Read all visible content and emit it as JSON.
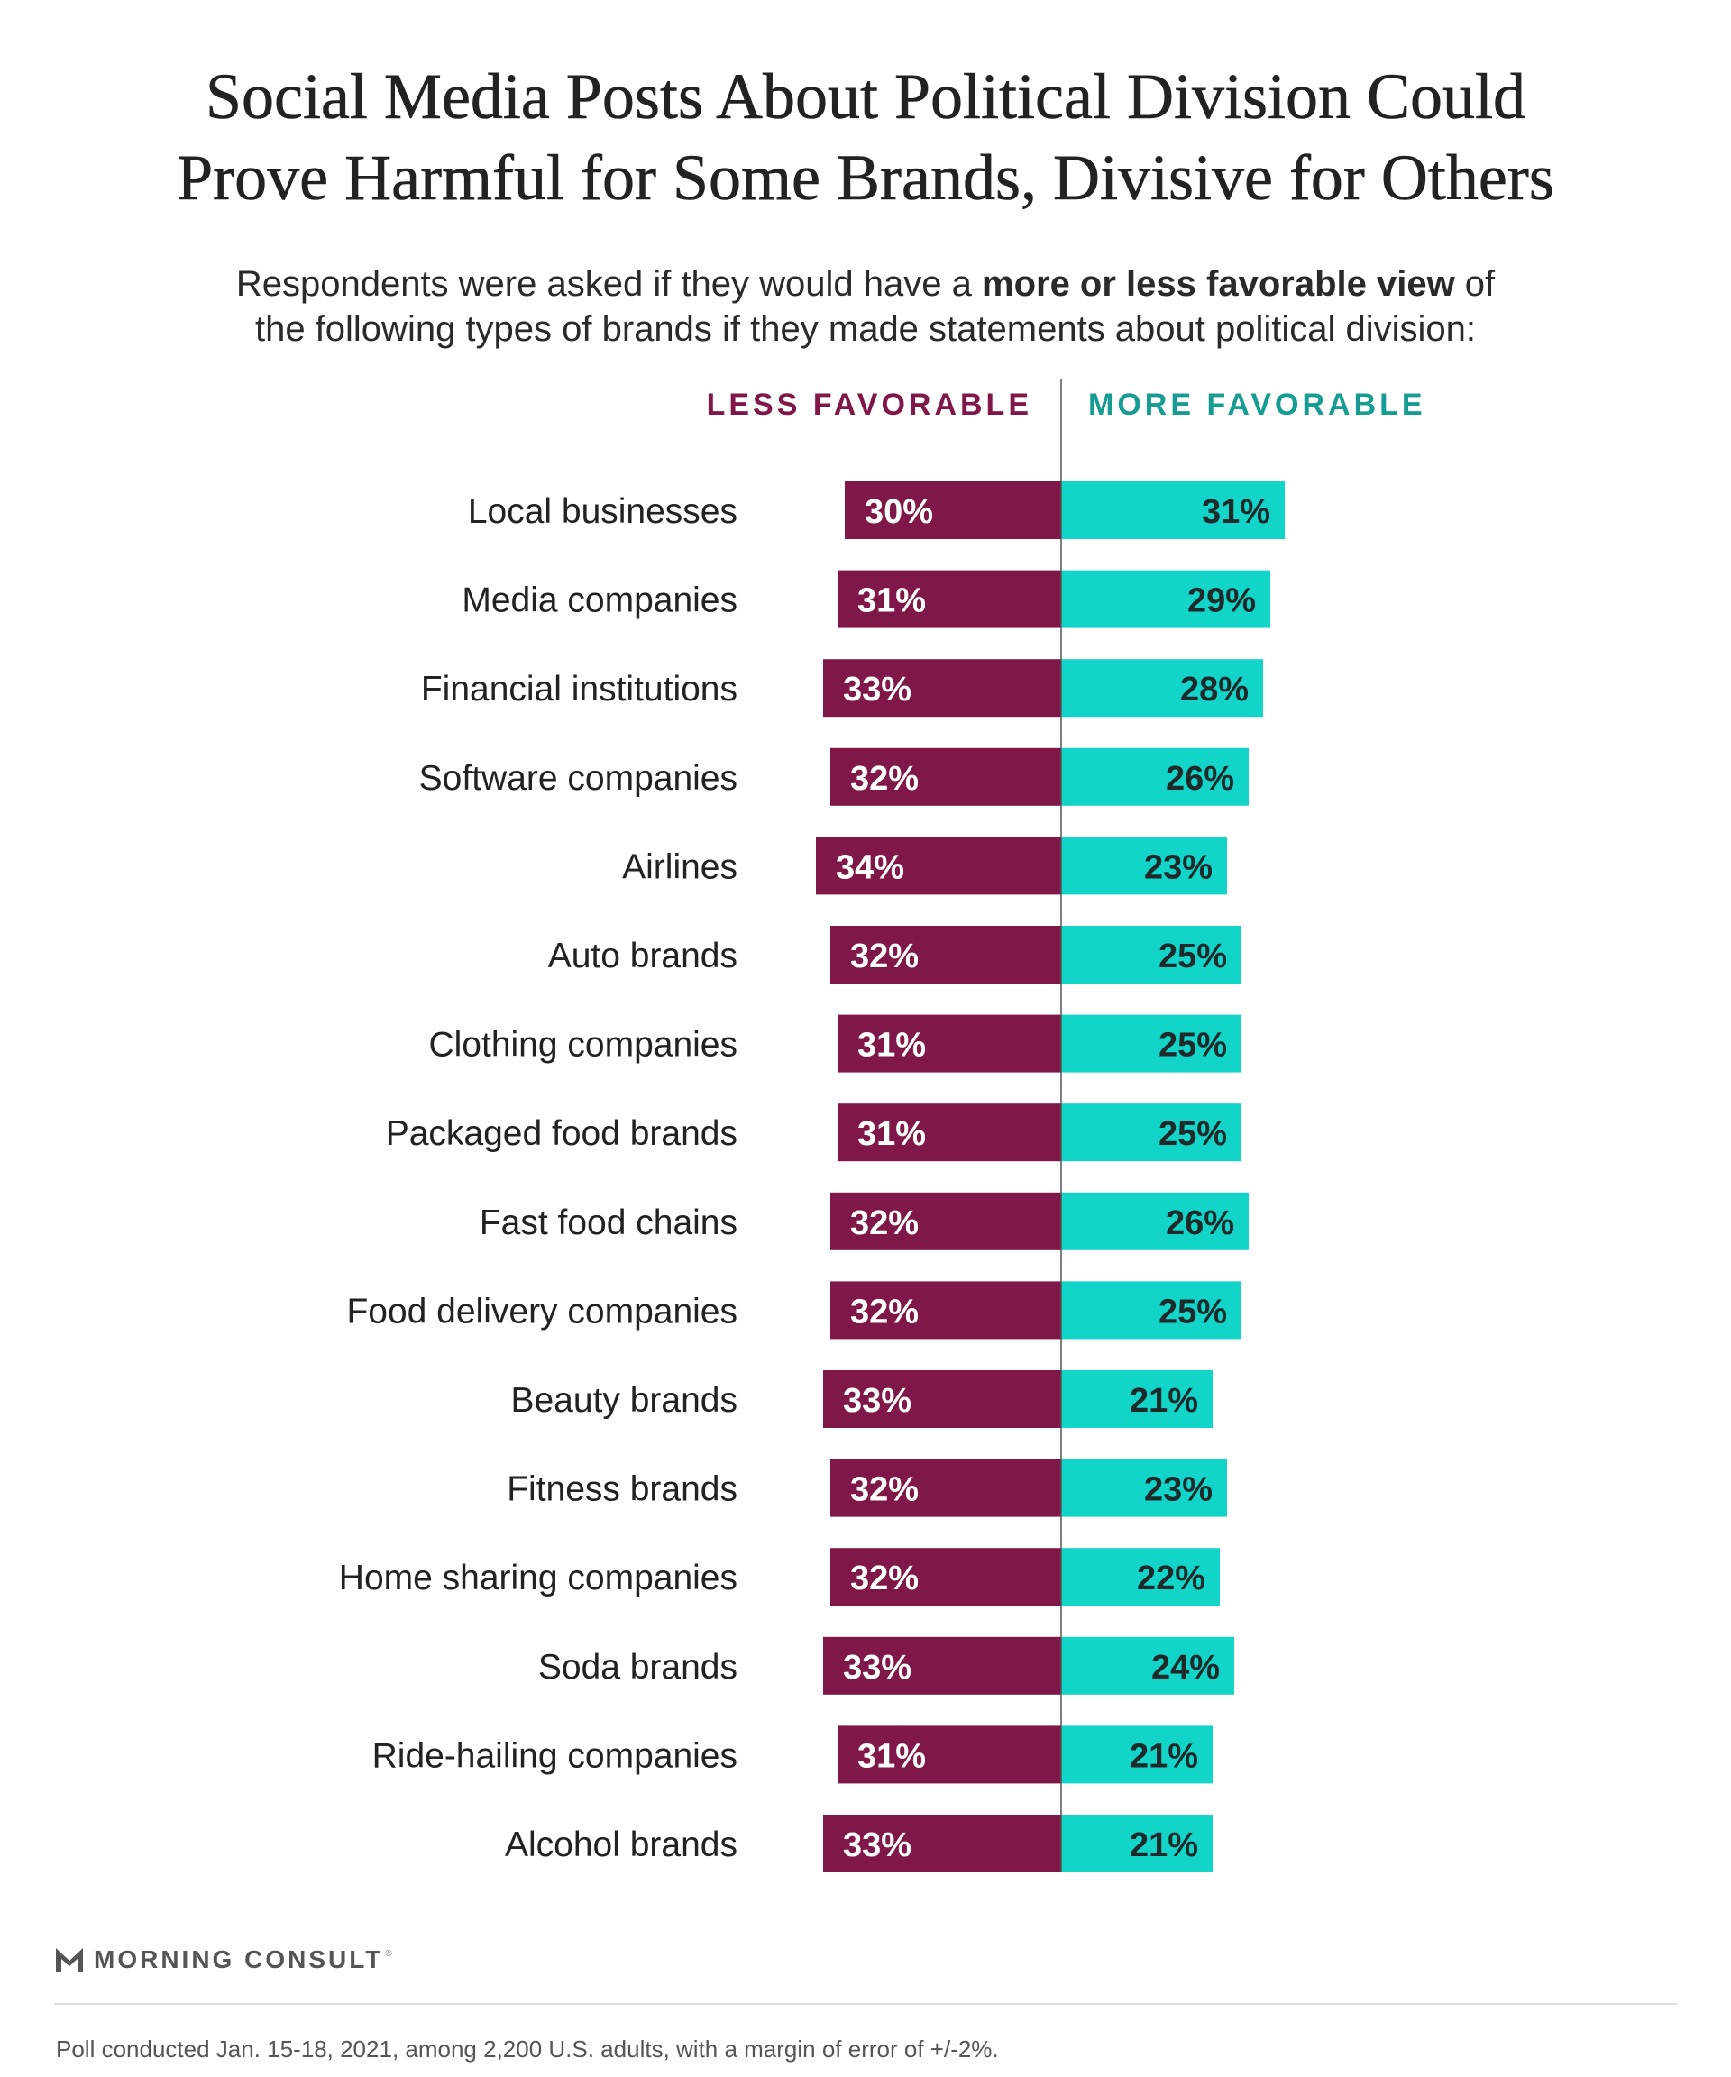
{
  "header": {
    "title_line1": "Social Media Posts About Political Division Could",
    "title_line2": "Prove Harmful for Some Brands, Divisive for Others",
    "subtitle_line1_before": "Respondents were asked if they would have a ",
    "subtitle_line1_bold": "more or less favorable view",
    "subtitle_line1_after": " of",
    "subtitle_line2": "the following types of brands if they made statements about political division:"
  },
  "footer": {
    "logo_text": "MORNING CONSULT",
    "logo_reg": "®",
    "source": "Poll conducted Jan. 15-18, 2021, among 2,200 U.S. adults, with a margin of error of +/-2%."
  },
  "colors": {
    "less": "#7f1749",
    "more": "#12d4c9",
    "more_label": "#179c94",
    "axis": "#555555",
    "text": "#222222"
  },
  "chart_data": {
    "type": "bar",
    "orientation": "horizontal-diverging",
    "categories": [
      "Local businesses",
      "Media companies",
      "Financial institutions",
      "Software companies",
      "Airlines",
      "Auto brands",
      "Clothing companies",
      "Packaged food brands",
      "Fast food chains",
      "Food delivery companies",
      "Beauty brands",
      "Fitness brands",
      "Home sharing companies",
      "Soda brands",
      "Ride-hailing companies",
      "Alcohol brands"
    ],
    "series": [
      {
        "name": "LESS FAVORABLE",
        "values": [
          30,
          31,
          33,
          32,
          34,
          32,
          31,
          31,
          32,
          32,
          33,
          32,
          32,
          33,
          31,
          33
        ],
        "labels": [
          "30%",
          "31%",
          "33%",
          "32%",
          "34%",
          "32%",
          "31%",
          "31%",
          "32%",
          "32%",
          "33%",
          "32%",
          "32%",
          "33%",
          "31%",
          "33%"
        ]
      },
      {
        "name": "MORE FAVORABLE",
        "values": [
          31,
          29,
          28,
          26,
          23,
          25,
          25,
          25,
          26,
          25,
          21,
          23,
          22,
          24,
          21,
          21
        ],
        "labels": [
          "31%",
          "29%",
          "28%",
          "26%",
          "23%",
          "25%",
          "25%",
          "25%",
          "26%",
          "25%",
          "21%",
          "23%",
          "22%",
          "24%",
          "21%",
          "21%"
        ]
      }
    ],
    "unit": "%",
    "grid": false,
    "legend": "top"
  }
}
